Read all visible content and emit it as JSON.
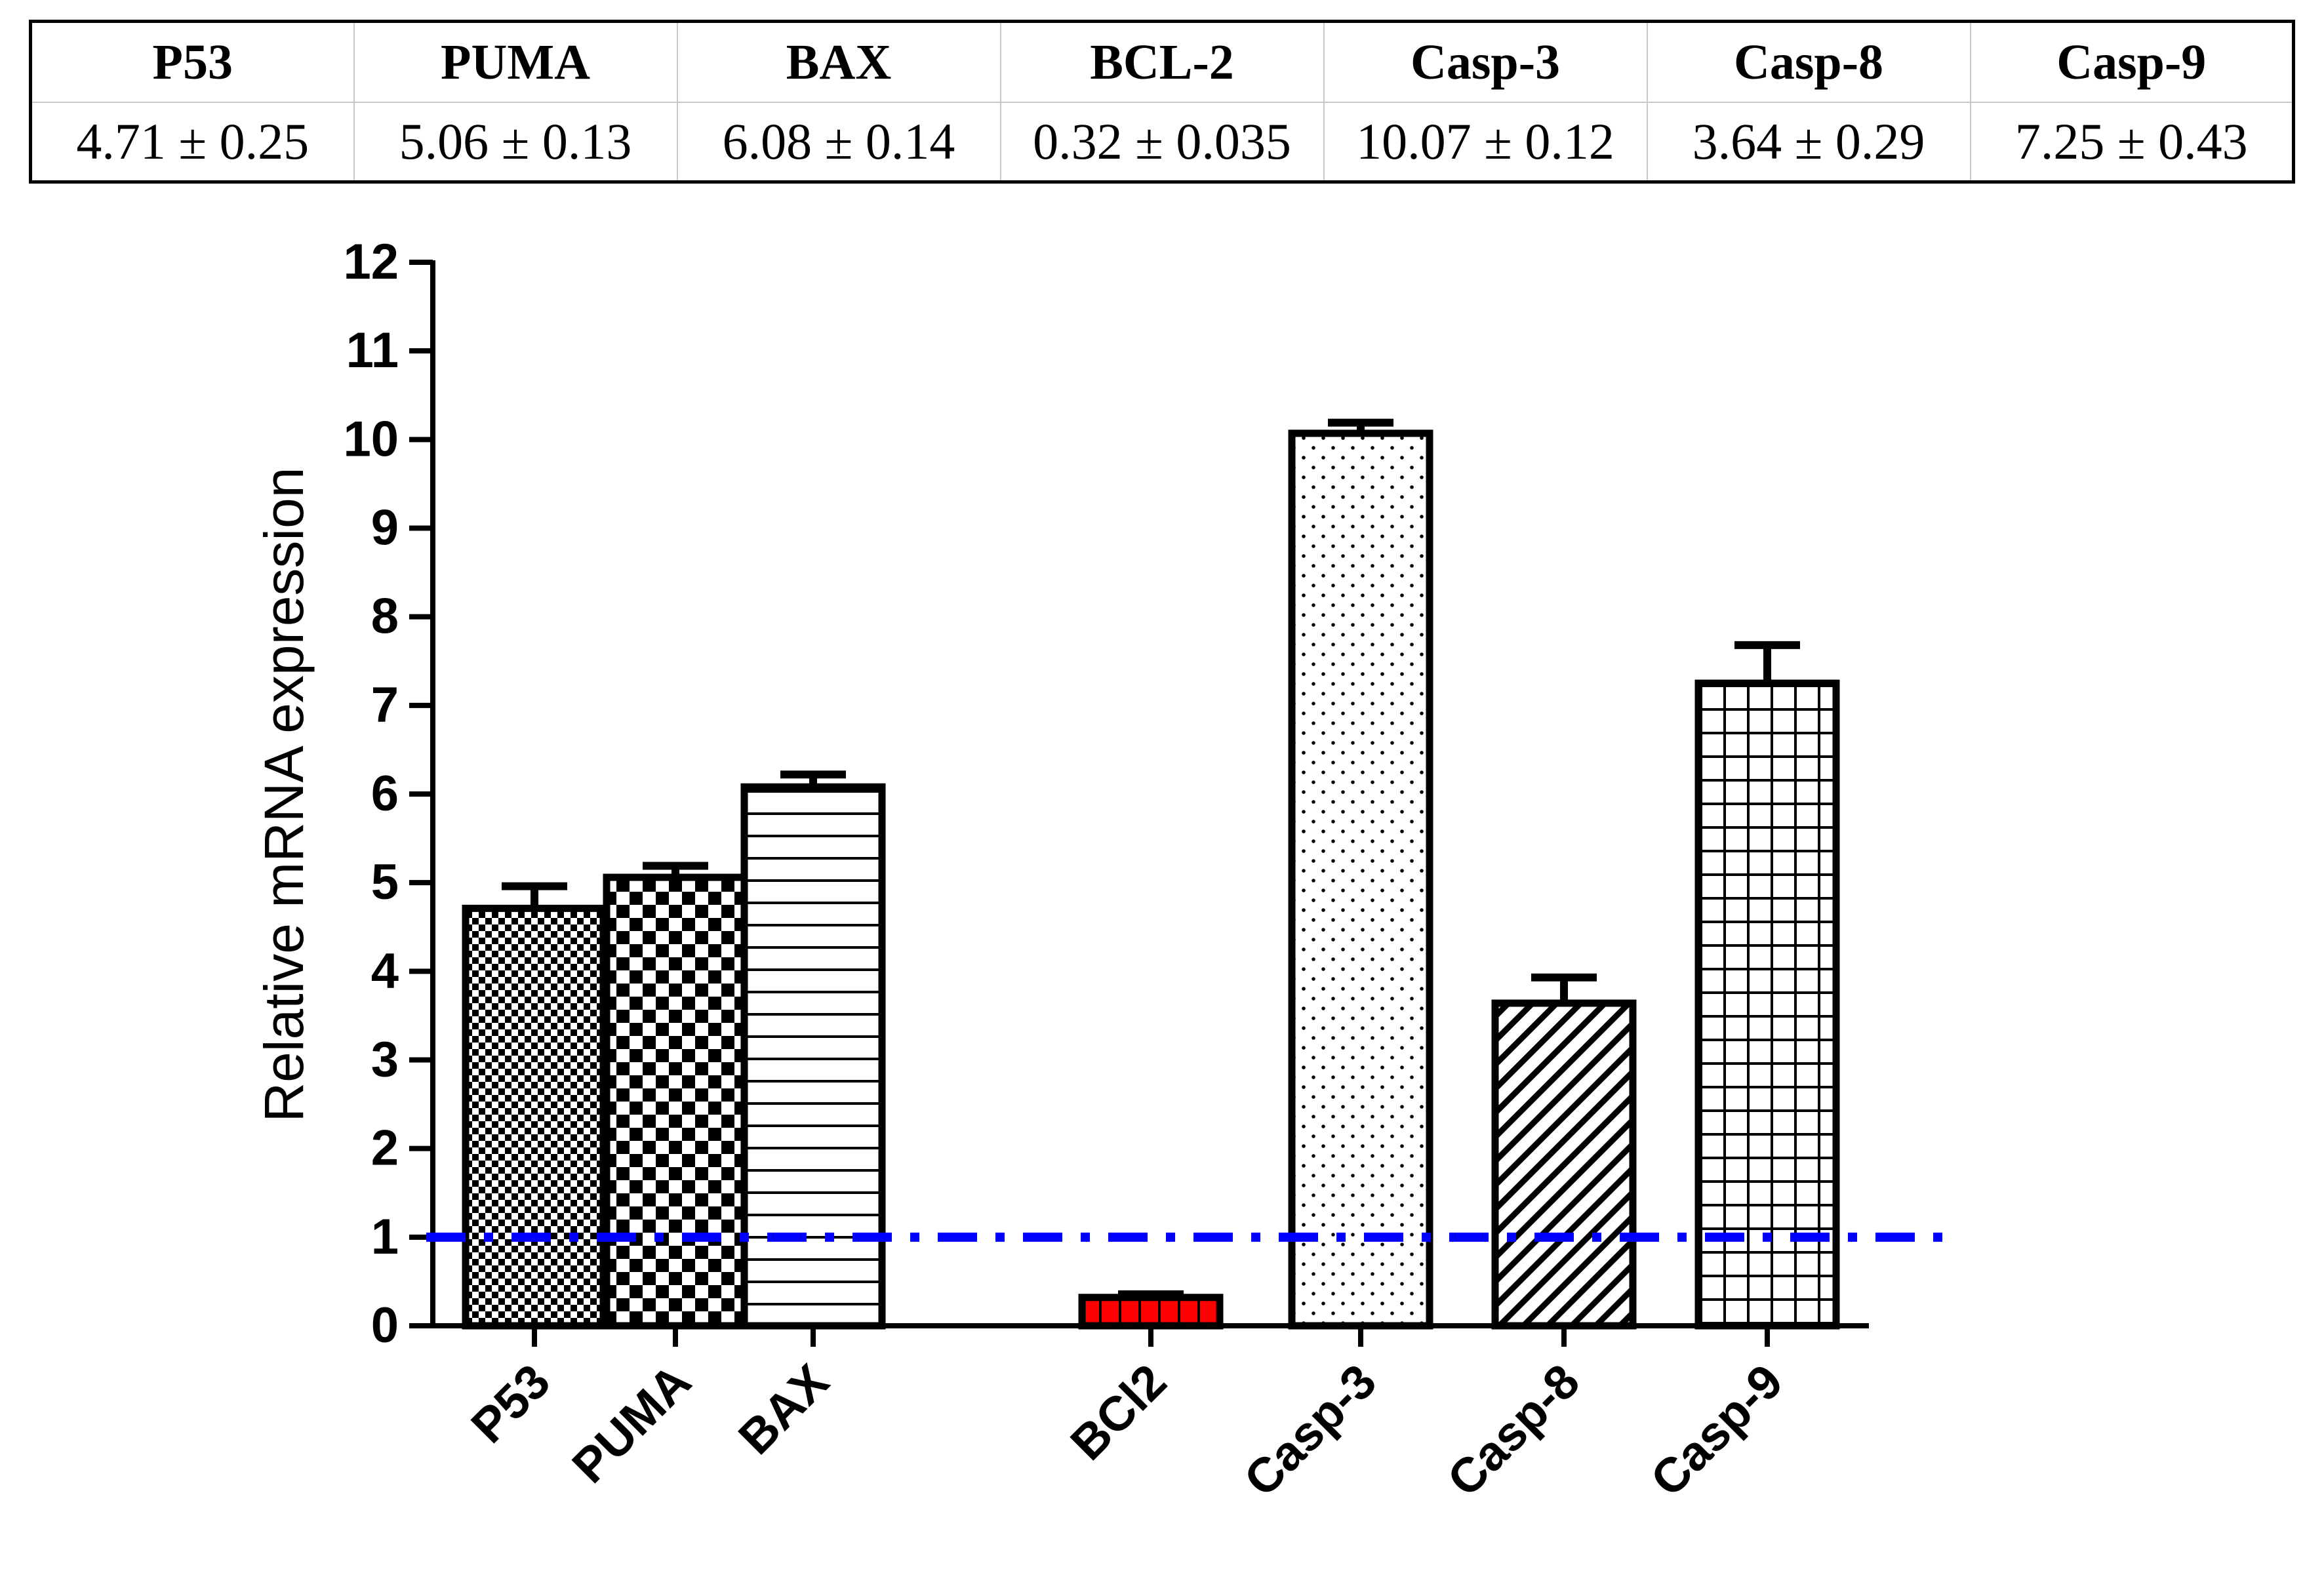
{
  "table": {
    "headers": [
      "P53",
      "PUMA",
      "BAX",
      "BCL-2",
      "Casp-3",
      "Casp-8",
      "Casp-9"
    ],
    "values": [
      "4.71 ± 0.25",
      "5.06 ± 0.13",
      "6.08 ± 0.14",
      "0.32 ± 0.035",
      "10.07 ± 0.12",
      "3.64 ± 0.29",
      "7.25 ± 0.43"
    ]
  },
  "chart_data": {
    "type": "bar",
    "title": "",
    "xlabel": "",
    "ylabel": "Relative mRNA expression",
    "categories": [
      "P53",
      "PUMA",
      "BAX",
      "BCl2",
      "Casp-3",
      "Casp-8",
      "Casp-9"
    ],
    "values": [
      4.71,
      5.06,
      6.08,
      0.32,
      10.07,
      3.64,
      7.25
    ],
    "errors": [
      0.25,
      0.13,
      0.14,
      0.035,
      0.12,
      0.29,
      0.43
    ],
    "patterns": [
      "fine-checker",
      "checker",
      "horizontal-lines",
      "red-blocks",
      "dots",
      "diagonal-lines",
      "grid"
    ],
    "yticks": [
      "0",
      "1",
      "2",
      "3",
      "4",
      "5",
      "6",
      "7",
      "8",
      "9",
      "10",
      "11",
      "12"
    ],
    "ylim": [
      0,
      12
    ],
    "reference_line": {
      "value": 1,
      "color": "#0000ff",
      "style": "dash-dot"
    },
    "colors": {
      "axis": "#000000",
      "bar_outline": "#000000",
      "bcl2_fill": "#ff0000"
    }
  }
}
